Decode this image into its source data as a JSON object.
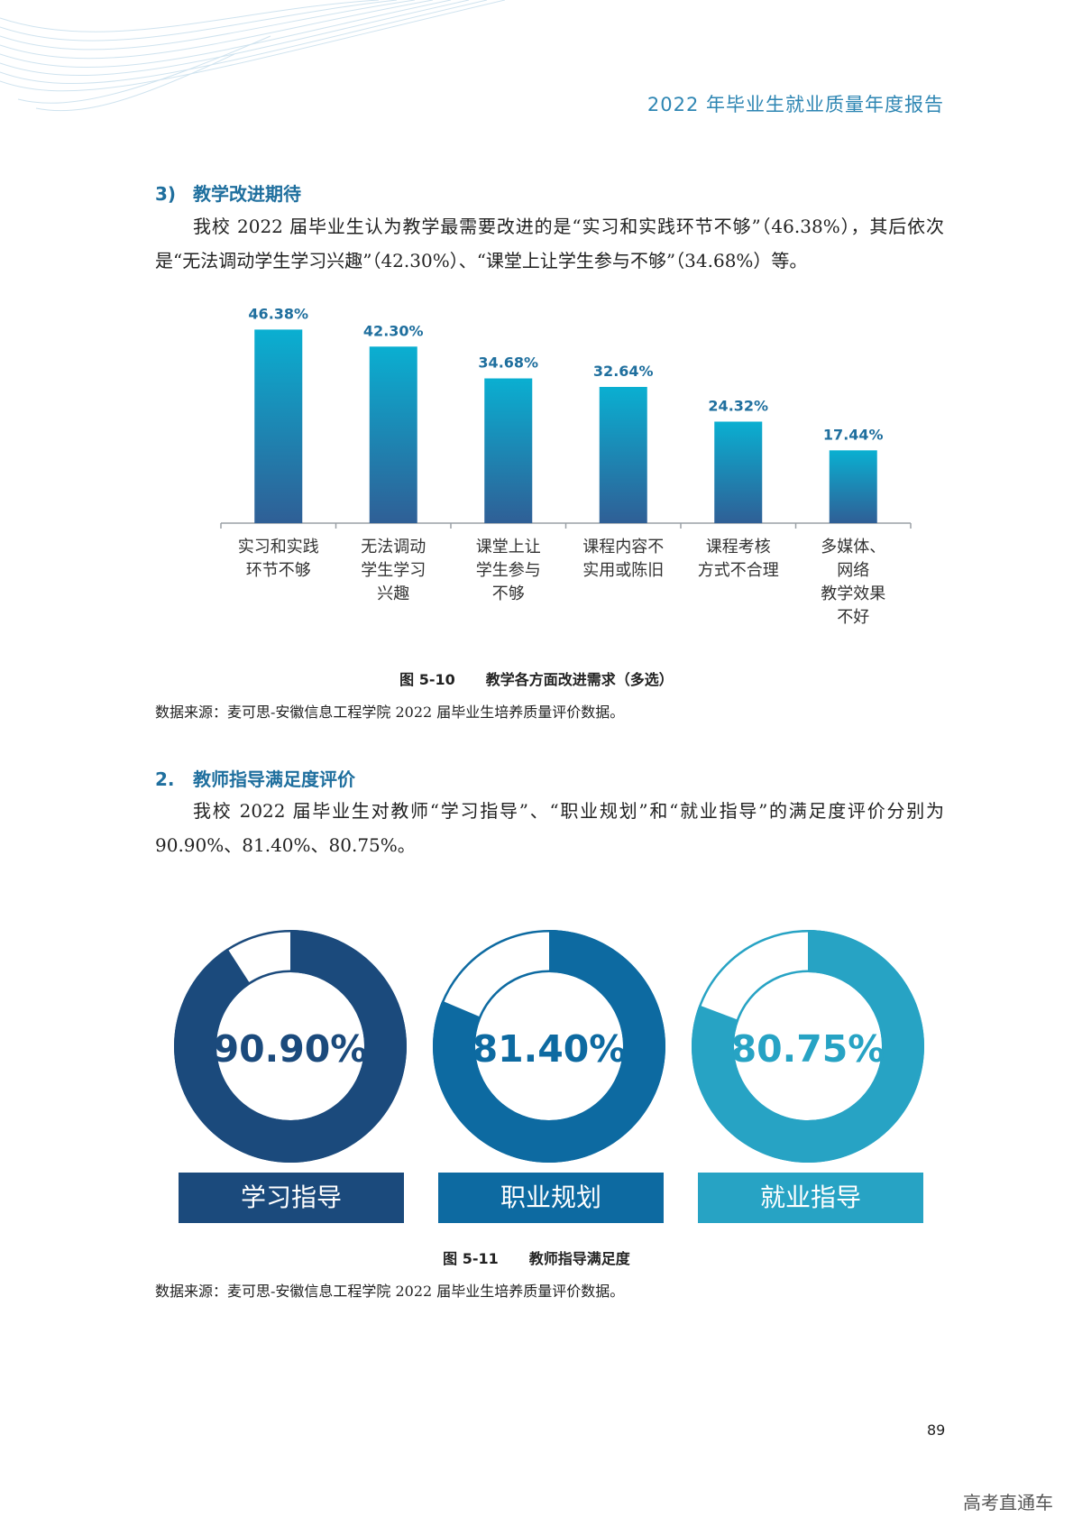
{
  "header": {
    "title": "2022 年毕业生就业质量年度报告"
  },
  "section3": {
    "number": "3)",
    "title": "教学改进期待",
    "paragraph": "我校 2022 届毕业生认为教学最需要改进的是“实习和实践环节不够”（46.38%），其后依次是“无法调动学生学习兴趣”（42.30%）、“课堂上让学生参与不够”（34.68%）等。"
  },
  "figure_510": {
    "number": "图 5-10",
    "title": "教学各方面改进需求（多选）",
    "source": "数据来源：麦可思-安徽信息工程学院 2022 届毕业生培养质量评价数据。"
  },
  "section2": {
    "number": "2.",
    "title": "教师指导满足度评价",
    "paragraph": "我校 2022 届毕业生对教师“学习指导”、“职业规划”和“就业指导”的满足度评价分别为 90.90%、81.40%、80.75%。"
  },
  "figure_511": {
    "number": "图 5-11",
    "title": "教师指导满足度",
    "source": "数据来源：麦可思-安徽信息工程学院 2022 届毕业生培养质量评价数据。"
  },
  "page_number": "89",
  "watermark": "高考直通车",
  "colors": {
    "bar_top": "#0aafd1",
    "bar_bottom": "#2f5f96",
    "donut_1": "#1b4a7c",
    "donut_2": "#0d6aa1",
    "donut_3": "#27a3c4",
    "accent": "#1f6f9e"
  },
  "chart_data": [
    {
      "type": "bar",
      "categories": [
        [
          "实习和实践",
          "环节不够"
        ],
        [
          "无法调动",
          "学生学习",
          "兴趣"
        ],
        [
          "课堂上让",
          "学生参与",
          "不够"
        ],
        [
          "课程内容不",
          "实用或陈旧"
        ],
        [
          "课程考核",
          "方式不合理"
        ],
        [
          "多媒体、",
          "网络",
          "教学效果",
          "不好"
        ]
      ],
      "values": [
        46.38,
        42.3,
        34.68,
        32.64,
        24.32,
        17.44
      ],
      "data_labels": [
        "46.38%",
        "42.30%",
        "34.68%",
        "32.64%",
        "24.32%",
        "17.44%"
      ],
      "ylim": [
        0,
        50
      ],
      "grid": false
    },
    {
      "type": "pie",
      "style": "donut",
      "items": [
        {
          "label": "学习指导",
          "value": 90.9,
          "text": "90.90%"
        },
        {
          "label": "职业规划",
          "value": 81.4,
          "text": "81.40%"
        },
        {
          "label": "就业指导",
          "value": 80.75,
          "text": "80.75%"
        }
      ]
    }
  ]
}
